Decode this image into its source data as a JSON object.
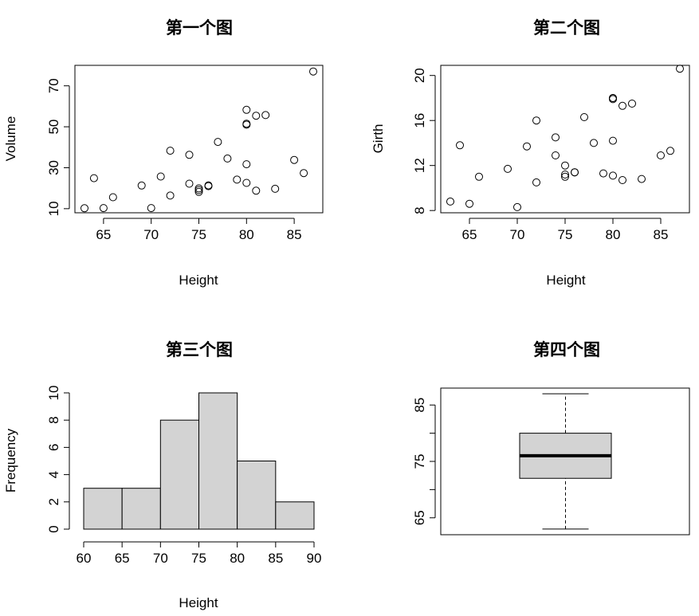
{
  "chart_data": [
    {
      "type": "scatter",
      "title": "第一个图",
      "xlabel": "Height",
      "ylabel": "Volume",
      "xlim": [
        62,
        88
      ],
      "ylim": [
        8,
        80
      ],
      "xticks": [
        65,
        70,
        75,
        80,
        85
      ],
      "yticks": [
        10,
        30,
        50,
        70
      ],
      "frame": true,
      "points": [
        [
          70,
          10.3
        ],
        [
          65,
          10.3
        ],
        [
          63,
          10.2
        ],
        [
          72,
          16.4
        ],
        [
          81,
          18.8
        ],
        [
          83,
          19.7
        ],
        [
          66,
          15.6
        ],
        [
          75,
          18.2
        ],
        [
          80,
          22.6
        ],
        [
          75,
          19.9
        ],
        [
          79,
          24.2
        ],
        [
          76,
          21.0
        ],
        [
          76,
          21.4
        ],
        [
          69,
          21.3
        ],
        [
          75,
          19.1
        ],
        [
          74,
          22.2
        ],
        [
          85,
          33.8
        ],
        [
          86,
          27.4
        ],
        [
          71,
          25.7
        ],
        [
          64,
          24.9
        ],
        [
          78,
          34.5
        ],
        [
          80,
          31.7
        ],
        [
          74,
          36.3
        ],
        [
          72,
          38.3
        ],
        [
          77,
          42.6
        ],
        [
          81,
          55.4
        ],
        [
          82,
          55.7
        ],
        [
          80,
          58.3
        ],
        [
          80,
          51.5
        ],
        [
          80,
          51.0
        ],
        [
          87,
          77.0
        ]
      ]
    },
    {
      "type": "scatter",
      "title": "第二个图",
      "xlabel": "Height",
      "ylabel": "Girth",
      "xlim": [
        62,
        88
      ],
      "ylim": [
        7.8,
        20.9
      ],
      "xticks": [
        65,
        70,
        75,
        80,
        85
      ],
      "yticks": [
        8,
        12,
        16,
        20
      ],
      "frame": true,
      "points": [
        [
          70,
          8.3
        ],
        [
          65,
          8.6
        ],
        [
          63,
          8.8
        ],
        [
          72,
          10.5
        ],
        [
          81,
          10.7
        ],
        [
          83,
          10.8
        ],
        [
          66,
          11.0
        ],
        [
          75,
          11.0
        ],
        [
          80,
          11.1
        ],
        [
          75,
          11.2
        ],
        [
          79,
          11.3
        ],
        [
          76,
          11.4
        ],
        [
          76,
          11.4
        ],
        [
          69,
          11.7
        ],
        [
          75,
          12.0
        ],
        [
          74,
          12.9
        ],
        [
          85,
          12.9
        ],
        [
          86,
          13.3
        ],
        [
          71,
          13.7
        ],
        [
          64,
          13.8
        ],
        [
          78,
          14.0
        ],
        [
          80,
          14.2
        ],
        [
          74,
          14.5
        ],
        [
          72,
          16.0
        ],
        [
          77,
          16.3
        ],
        [
          81,
          17.3
        ],
        [
          82,
          17.5
        ],
        [
          80,
          17.9
        ],
        [
          80,
          18.0
        ],
        [
          80,
          18.0
        ],
        [
          87,
          20.6
        ]
      ]
    },
    {
      "type": "bar",
      "title": "第三个图",
      "xlabel": "Height",
      "ylabel": "Frequency",
      "bins": [
        [
          60,
          65
        ],
        [
          65,
          70
        ],
        [
          70,
          75
        ],
        [
          75,
          80
        ],
        [
          80,
          85
        ],
        [
          85,
          90
        ]
      ],
      "values": [
        3,
        3,
        8,
        10,
        5,
        2
      ],
      "xlim": [
        59,
        91
      ],
      "ylim": [
        0,
        10
      ],
      "xticks": [
        60,
        65,
        70,
        75,
        80,
        85,
        90
      ],
      "yticks": [
        0,
        2,
        4,
        6,
        8,
        10
      ],
      "frame": false
    },
    {
      "type": "box",
      "title": "第四个图",
      "min": 63,
      "q1": 72,
      "median": 76,
      "q3": 80,
      "max": 87,
      "ylim": [
        62,
        88
      ],
      "yticks": [
        65,
        70,
        75,
        80,
        85
      ],
      "ytick_labels": [
        "65",
        "",
        "75",
        "",
        "85"
      ],
      "frame": true
    }
  ]
}
